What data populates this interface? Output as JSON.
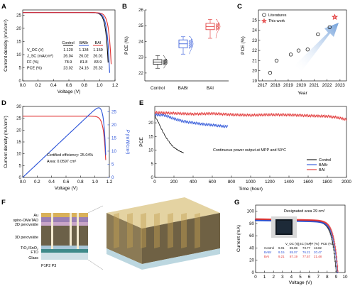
{
  "panels": {
    "A": {
      "letter": "A",
      "chart_data": {
        "type": "line",
        "xlabel": "Voltage (V)",
        "ylabel": "Current density (mA/cm²)",
        "xlim": [
          0,
          1.2
        ],
        "ylim": [
          0,
          27
        ],
        "xticks": [
          "0.0",
          "0.2",
          "0.4",
          "0.6",
          "0.8",
          "1.0",
          "1.2"
        ],
        "yticks": [
          "0",
          "5",
          "10",
          "15",
          "20",
          "25"
        ],
        "series": [
          {
            "name": "Control",
            "color": "#111111",
            "voc": 1.12,
            "jsc": 26.04
          },
          {
            "name": "BABr",
            "color": "#2a52d8",
            "voc": 1.134,
            "jsc": 26.02
          },
          {
            "name": "BAI",
            "color": "#e03030",
            "voc": 1.159,
            "jsc": 26.01
          }
        ],
        "table": {
          "columns": [
            "",
            "Control",
            "BABr",
            "BAI"
          ],
          "rows": [
            {
              "label": "V_OC (V)",
              "values": [
                "1.120",
                "1.134",
                "1.159"
              ]
            },
            {
              "label": "J_SC (mA/cm²)",
              "values": [
                "26.04",
                "26.02",
                "26.01"
              ]
            },
            {
              "label": "FF (%)",
              "values": [
                "78.9",
                "81.8",
                "83.9"
              ]
            },
            {
              "label": "PCE (%)",
              "values": [
                "23.02",
                "24.16",
                "25.32"
              ]
            }
          ]
        }
      }
    },
    "B": {
      "letter": "B",
      "chart_data": {
        "type": "box",
        "ylabel": "PCE (%)",
        "ylim": [
          21.5,
          26
        ],
        "yticks": [
          "22",
          "23",
          "24",
          "25",
          "26"
        ],
        "categories": [
          "Control",
          "BABr",
          "BAI"
        ],
        "colors": [
          "#111111",
          "#2a52d8",
          "#e03030"
        ],
        "boxes": [
          {
            "min": 22.3,
            "q1": 22.55,
            "median": 22.7,
            "q3": 22.85,
            "max": 23.1
          },
          {
            "min": 23.2,
            "q1": 23.6,
            "median": 23.85,
            "q3": 24.1,
            "max": 24.3
          },
          {
            "min": 24.2,
            "q1": 24.75,
            "median": 24.95,
            "q3": 25.15,
            "max": 25.4
          }
        ]
      }
    },
    "C": {
      "letter": "C",
      "chart_data": {
        "type": "scatter",
        "xlabel": "Year",
        "ylabel": "PCE (%)",
        "xlim": [
          2016.7,
          2023.5
        ],
        "ylim": [
          19,
          26
        ],
        "xticks": [
          "2017",
          "2018",
          "2019",
          "2020",
          "2021",
          "2022",
          "2023"
        ],
        "yticks": [
          "19",
          "20",
          "21",
          "22",
          "23",
          "24",
          "25"
        ],
        "legend": [
          "Literatures",
          "This work"
        ],
        "literatures": {
          "x": [
            2017.6,
            2018.1,
            2019.2,
            2019.8,
            2020.5,
            2021.3,
            2022.2
          ],
          "y": [
            19.8,
            21.0,
            21.6,
            22.0,
            22.1,
            23.6,
            24.3
          ]
        },
        "this_work": {
          "x": [
            2022.6
          ],
          "y": [
            25.3
          ]
        }
      }
    },
    "D": {
      "letter": "D",
      "chart_data": {
        "type": "line",
        "xlabel": "Voltage (V)",
        "ylabel": "Current density (mA/cm²)",
        "ylabel_right": "P (mW/cm²)",
        "xlim": [
          0,
          1.2
        ],
        "ylim": [
          0,
          30
        ],
        "yticks": [
          "0",
          "5",
          "10",
          "15",
          "20",
          "25",
          "30"
        ],
        "yticks_right": [
          "0",
          "5",
          "10",
          "15",
          "20",
          "25"
        ],
        "xticks": [
          "0.0",
          "0.2",
          "0.4",
          "0.6",
          "0.8",
          "1.0",
          "1.2"
        ],
        "jsc": 25.9,
        "voc": 1.16,
        "pmax": 25.04,
        "colors": [
          "#e03030",
          "#2a52d8"
        ],
        "annotation": [
          "Certified efficiency: 25.04%",
          "Area: 0.0597 cm²"
        ]
      }
    },
    "E": {
      "letter": "E",
      "chart_data": {
        "type": "line",
        "xlabel": "Time (hour)",
        "ylabel": "PCE",
        "xlim": [
          0,
          2000
        ],
        "ylim": [
          0,
          26
        ],
        "xticks": [
          "0",
          "200",
          "400",
          "600",
          "800",
          "1000",
          "1200",
          "1400",
          "1600",
          "1800",
          "2000"
        ],
        "yticks": [
          "0",
          "5",
          "10",
          "15",
          "20"
        ],
        "annotation": "Continuous power output at MPP and 50°C",
        "series": [
          {
            "name": "Control",
            "color": "#111111",
            "x": [
              0,
              40,
              80,
              120,
              160,
              200,
              250,
              300
            ],
            "y": [
              22.5,
              20,
              17,
              14.5,
              12.5,
              11,
              9.8,
              9
            ]
          },
          {
            "name": "BABr",
            "color": "#2a52d8",
            "x": [
              0,
              100,
              200,
              300,
              400,
              500,
              600,
              700,
              760
            ],
            "y": [
              23,
              22.8,
              21.5,
              20.5,
              20,
              19.5,
              19.2,
              18.8,
              18.6
            ]
          },
          {
            "name": "BAI",
            "color": "#e03030",
            "x": [
              0,
              200,
              400,
              600,
              800,
              1000,
              1200,
              1400,
              1600,
              1800,
              1900,
              2000
            ],
            "y": [
              23.8,
              23.5,
              23.2,
              23.4,
              23,
              22.8,
              23,
              22.9,
              22.6,
              22.4,
              22,
              21.2
            ]
          }
        ]
      }
    },
    "F": {
      "letter": "F",
      "layers": [
        "Au",
        "spiro-OMeTAD",
        "2D perovskite",
        "3D perovskite",
        "TiO₂/SnO₂",
        "FTO",
        "Glass"
      ],
      "scribes": "P1P2 P3"
    },
    "G": {
      "letter": "G",
      "chart_data": {
        "type": "line",
        "xlabel": "Voltage (V)",
        "ylabel": "Current (mA)",
        "xlim": [
          0,
          10
        ],
        "ylim": [
          0,
          110
        ],
        "xticks": [
          "0",
          "1",
          "2",
          "3",
          "4",
          "5",
          "6",
          "7",
          "8",
          "9",
          "10"
        ],
        "yticks": [
          "0",
          "20",
          "40",
          "60",
          "80",
          "100"
        ],
        "annotation": "Designated area 29 cm²",
        "table": {
          "columns": [
            "",
            "V_OC (V)",
            "I_SC (mA)",
            "FF (%)",
            "PCE (%)"
          ],
          "rows": [
            {
              "label": "Control",
              "values": [
                "9.01",
                "85.89",
                "73.77",
                "18.82"
              ],
              "color": "#111111"
            },
            {
              "label": "BABr",
              "values": [
                "9.15",
                "85.07",
                "76.21",
                "20.47"
              ],
              "color": "#2a52d8"
            },
            {
              "label": "BAI",
              "values": [
                "9.21",
                "87.19",
                "77.57",
                "21.48"
              ],
              "color": "#e03030"
            }
          ]
        },
        "series": [
          {
            "name": "Control",
            "color": "#111111",
            "voc": 9.01,
            "isc": 85.89
          },
          {
            "name": "BABr",
            "color": "#2a52d8",
            "voc": 9.15,
            "isc": 85.07
          },
          {
            "name": "BAI",
            "color": "#e03030",
            "voc": 9.21,
            "isc": 87.19
          }
        ]
      }
    }
  }
}
